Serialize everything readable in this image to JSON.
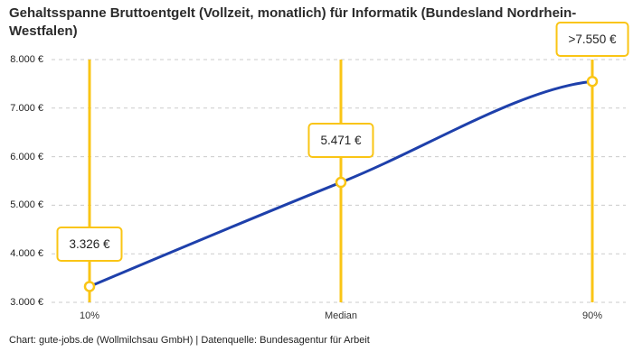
{
  "header": {
    "title": "Gehaltsspanne Bruttoentgelt (Vollzeit, monatlich) für Informatik (Bundesland Nordrhein-Westfalen)"
  },
  "footer": {
    "credit": "Chart: gute-jobs.de (Wollmilchsau GmbH) | Datenquelle: Bundesagentur für Arbeit"
  },
  "chart_data": {
    "type": "line",
    "title": "Gehaltsspanne Bruttoentgelt (Vollzeit, monatlich) für Informatik (Bundesland Nordrhein-Westfalen)",
    "categories": [
      "10%",
      "Median",
      "90%"
    ],
    "values": [
      3326,
      5471,
      7550
    ],
    "point_labels": [
      "3.326 €",
      "5.471 €",
      ">7.550 €"
    ],
    "y_tick_values": [
      8000,
      7000,
      6000,
      5000,
      4000,
      3000
    ],
    "y_tick_labels": [
      "8.000 €",
      "7.000 €",
      "6.000 €",
      "5.000 €",
      "4.000 €",
      "3.000 €"
    ],
    "ylim": [
      3000,
      8000
    ],
    "xlabel": "",
    "ylabel": "",
    "grid": "horizontal-dashed",
    "legend": "none",
    "colors": {
      "line": "#1e40ab",
      "accent": "#fac515",
      "gridline": "#cbcbcb",
      "marker_fill": "#ffffff",
      "text": "#222222"
    }
  }
}
